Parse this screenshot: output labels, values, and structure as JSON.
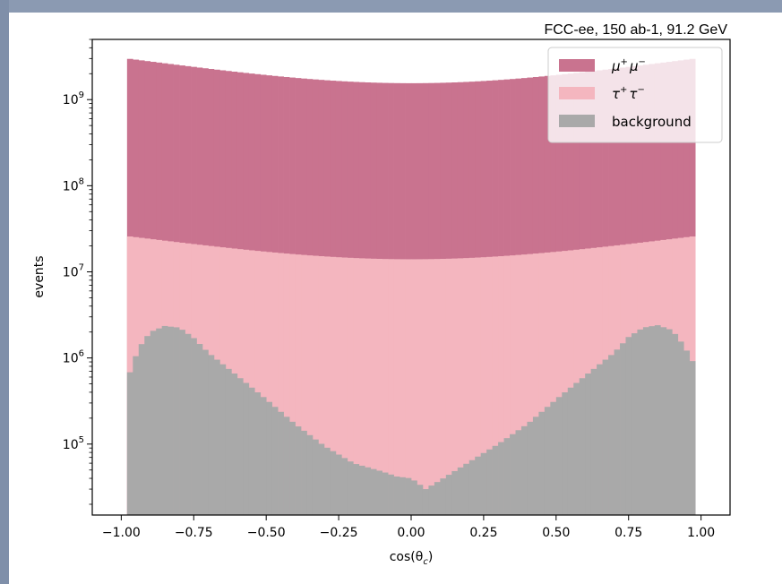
{
  "chart_data": {
    "type": "area",
    "histogram": true,
    "stacked": false,
    "annotation": "FCC-ee, 150 ab-1, 91.2 GeV",
    "xlabel": "cos(θ_c)",
    "ylabel": "events",
    "yscale": "log",
    "xlim": [
      -1.1,
      1.1
    ],
    "ylim": [
      15000,
      5000000000
    ],
    "x_ticks": [
      -1.0,
      -0.75,
      -0.5,
      -0.25,
      0.0,
      0.25,
      0.5,
      0.75,
      1.0
    ],
    "x_tick_labels": [
      "−1.00",
      "−0.75",
      "−0.50",
      "−0.25",
      "0.00",
      "0.25",
      "0.50",
      "0.75",
      "1.00"
    ],
    "y_ticks": [
      100000,
      1000000,
      10000000,
      100000000,
      1000000000
    ],
    "y_tick_labels": [
      {
        "base": "10",
        "exp": "5"
      },
      {
        "base": "10",
        "exp": "6"
      },
      {
        "base": "10",
        "exp": "7"
      },
      {
        "base": "10",
        "exp": "8"
      },
      {
        "base": "10",
        "exp": "9"
      }
    ],
    "legend_position": "top-right",
    "bins": {
      "start": -0.98,
      "end": 0.98,
      "count": 98
    },
    "series": [
      {
        "name": "μ⁺μ⁻",
        "legend": {
          "base": "μ",
          "sup1": "+",
          "mid": "μ",
          "sup2": "−"
        },
        "color": "#c9738f",
        "envelope": {
          "edge_value": 3000000000,
          "center_value": 1550000000,
          "shape": "parabolic"
        }
      },
      {
        "name": "τ⁺τ⁻",
        "legend": {
          "base": "τ",
          "sup1": "+",
          "mid": "τ",
          "sup2": "−"
        },
        "color": "#f4b6bf",
        "envelope": {
          "edge_value": 26000000,
          "center_value": 14000000,
          "shape": "parabolic"
        }
      },
      {
        "name": "background",
        "legend": {
          "text": "background"
        },
        "color": "#a9a9a9",
        "points": [
          [
            -0.98,
            550000
          ],
          [
            -0.94,
            1300000
          ],
          [
            -0.9,
            2000000
          ],
          [
            -0.85,
            2350000
          ],
          [
            -0.8,
            2250000
          ],
          [
            -0.75,
            1700000
          ],
          [
            -0.7,
            1150000
          ],
          [
            -0.6,
            620000
          ],
          [
            -0.5,
            330000
          ],
          [
            -0.4,
            170000
          ],
          [
            -0.3,
            95000
          ],
          [
            -0.2,
            60000
          ],
          [
            -0.1,
            48000
          ],
          [
            -0.05,
            42000
          ],
          [
            0.0,
            40000
          ],
          [
            0.05,
            30000
          ],
          [
            0.1,
            38000
          ],
          [
            0.2,
            62000
          ],
          [
            0.3,
            100000
          ],
          [
            0.4,
            170000
          ],
          [
            0.5,
            330000
          ],
          [
            0.6,
            620000
          ],
          [
            0.7,
            1150000
          ],
          [
            0.75,
            1750000
          ],
          [
            0.8,
            2250000
          ],
          [
            0.85,
            2400000
          ],
          [
            0.9,
            2100000
          ],
          [
            0.94,
            1400000
          ],
          [
            0.98,
            800000
          ]
        ]
      }
    ]
  }
}
